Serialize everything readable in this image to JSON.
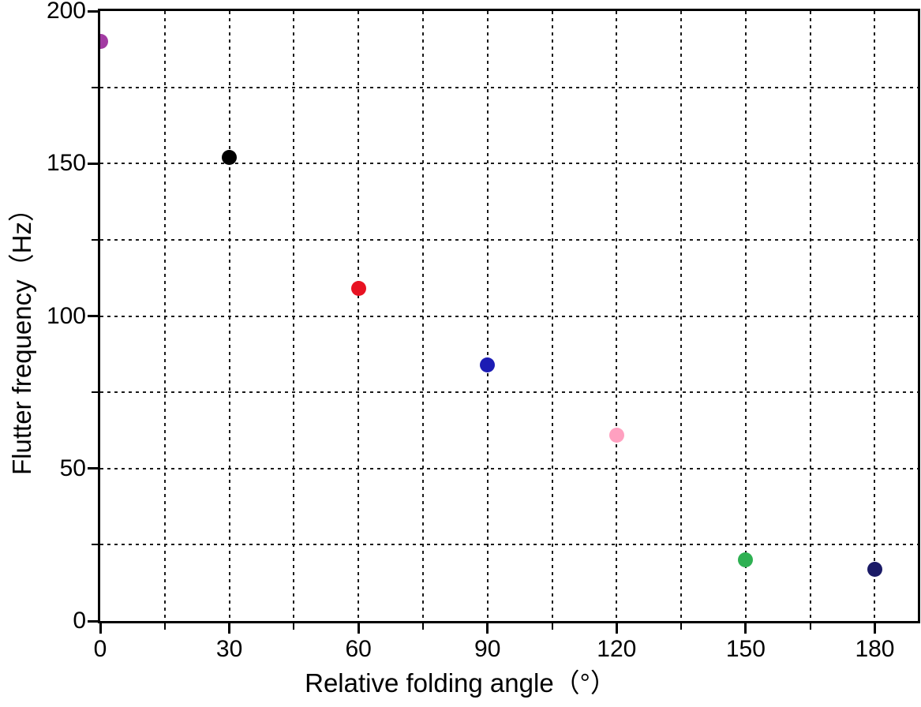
{
  "chart_data": {
    "type": "scatter",
    "title": "",
    "xlabel": "Relative folding angle（°）",
    "ylabel": "Flutter frequency（Hz）",
    "xlim": [
      0,
      190
    ],
    "ylim": [
      0,
      200
    ],
    "x_major_ticks": [
      0,
      30,
      60,
      90,
      120,
      150,
      180
    ],
    "x_minor_step": 15,
    "y_major_ticks": [
      0,
      50,
      100,
      150,
      200
    ],
    "y_minor_step": 25,
    "grid": "dotted gridlines at every minor tick, black",
    "legend": "none",
    "points": [
      {
        "x": 0,
        "y": 190,
        "color": "#a23aa2"
      },
      {
        "x": 30,
        "y": 152,
        "color": "#000000"
      },
      {
        "x": 60,
        "y": 109,
        "color": "#e81222"
      },
      {
        "x": 90,
        "y": 84,
        "color": "#1c1cb4"
      },
      {
        "x": 120,
        "y": 61,
        "color": "#ffa0c0"
      },
      {
        "x": 150,
        "y": 20,
        "color": "#2eb052"
      },
      {
        "x": 180,
        "y": 17,
        "color": "#1a1a66"
      }
    ]
  }
}
